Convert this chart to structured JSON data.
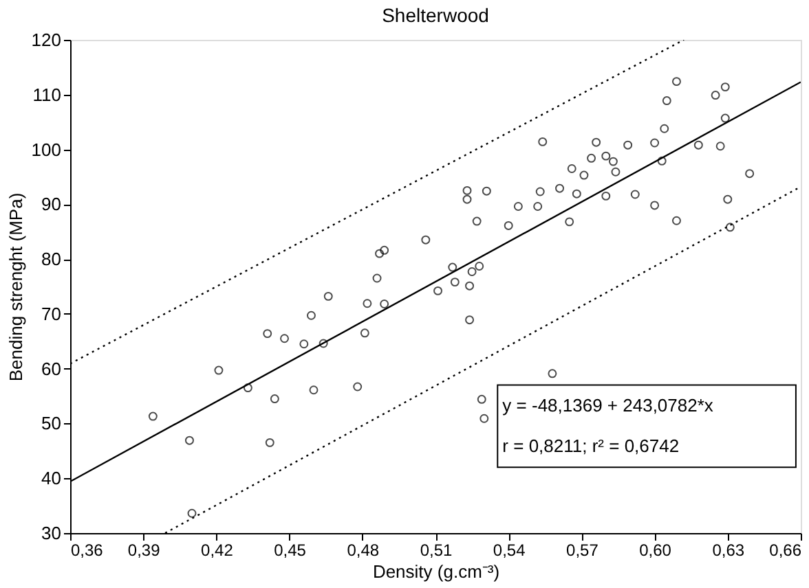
{
  "chart_data": {
    "type": "scatter",
    "title": "Shelterwood",
    "xlabel": "Density (g.cm⁻³)",
    "ylabel": "Bending strenght (MPa)",
    "xlim": [
      0.36,
      0.66
    ],
    "xticks": [
      {
        "value": 0.36,
        "label": "0,36"
      },
      {
        "value": 0.39,
        "label": "0,39"
      },
      {
        "value": 0.42,
        "label": "0,42"
      },
      {
        "value": 0.45,
        "label": "0,45"
      },
      {
        "value": 0.48,
        "label": "0,48"
      },
      {
        "value": 0.51,
        "label": "0,51"
      },
      {
        "value": 0.54,
        "label": "0,54"
      },
      {
        "value": 0.57,
        "label": "0,57"
      },
      {
        "value": 0.6,
        "label": "0,60"
      },
      {
        "value": 0.63,
        "label": "0,63"
      },
      {
        "value": 0.66,
        "label": "0,66"
      }
    ],
    "ylim": [
      30,
      120
    ],
    "yticks": [
      30,
      40,
      50,
      60,
      70,
      80,
      90,
      100,
      110,
      120
    ],
    "grid": false,
    "annotations": [
      "y = -48,1369 + 243,0782*x",
      "r = 0,8211; r² = 0,6742"
    ],
    "series": [
      {
        "type": "scatter",
        "marker": "circle",
        "color": "#000000",
        "x": [
          0.394,
          0.409,
          0.41,
          0.421,
          0.433,
          0.441,
          0.442,
          0.444,
          0.448,
          0.456,
          0.459,
          0.46,
          0.464,
          0.466,
          0.478,
          0.481,
          0.482,
          0.486,
          0.487,
          0.489,
          0.489,
          0.506,
          0.511,
          0.517,
          0.518,
          0.523,
          0.523,
          0.524,
          0.524,
          0.525,
          0.527,
          0.528,
          0.529,
          0.53,
          0.531,
          0.54,
          0.544,
          0.552,
          0.553,
          0.554,
          0.558,
          0.561,
          0.565,
          0.566,
          0.568,
          0.571,
          0.574,
          0.576,
          0.58,
          0.58,
          0.583,
          0.584,
          0.589,
          0.592,
          0.6,
          0.6,
          0.603,
          0.604,
          0.605,
          0.609,
          0.609,
          0.618,
          0.625,
          0.627,
          0.629,
          0.629,
          0.63,
          0.631,
          0.639
        ],
        "values": [
          51.3,
          46.9,
          33.6,
          59.7,
          56.5,
          66.4,
          46.5,
          54.5,
          65.5,
          64.5,
          69.7,
          56.1,
          64.6,
          73.2,
          56.7,
          66.5,
          71.9,
          76.5,
          81.0,
          81.6,
          71.8,
          83.5,
          74.2,
          78.5,
          75.8,
          90.9,
          92.5,
          68.9,
          75.1,
          77.7,
          86.9,
          78.7,
          54.4,
          50.9,
          92.4,
          86.1,
          89.6,
          89.6,
          92.3,
          101.4,
          59.1,
          92.9,
          86.8,
          96.5,
          91.9,
          95.3,
          98.4,
          101.3,
          91.5,
          98.8,
          97.8,
          95.9,
          100.8,
          91.8,
          101.2,
          89.8,
          97.9,
          103.8,
          108.9,
          112.4,
          87.0,
          100.8,
          109.9,
          100.6,
          111.4,
          105.7,
          90.9,
          85.8,
          95.6
        ]
      },
      {
        "type": "line",
        "line_style": "solid",
        "color": "#000000",
        "x": [
          0.36,
          0.66
        ],
        "values": [
          39.4,
          112.3
        ]
      },
      {
        "type": "line",
        "line_style": "dotted",
        "color": "#000000",
        "x": [
          0.36,
          0.612
        ],
        "values": [
          60.9,
          120
        ]
      },
      {
        "type": "line",
        "line_style": "dotted",
        "color": "#000000",
        "x": [
          0.399,
          0.66
        ],
        "values": [
          30,
          93.2
        ]
      }
    ]
  }
}
